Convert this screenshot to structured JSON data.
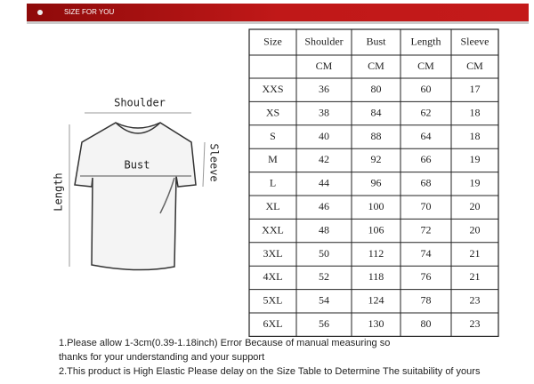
{
  "header": {
    "title": "SIZE FOR YOU"
  },
  "diagram": {
    "shoulder": "Shoulder",
    "bust": "Bust",
    "sleeve": "Sleeve",
    "length": "Length"
  },
  "table": {
    "columns": [
      "Size",
      "Shoulder",
      "Bust",
      "Length",
      "Sleeve"
    ],
    "units": [
      "CM",
      "CM",
      "CM",
      "CM"
    ],
    "rows": [
      [
        "XXS",
        "36",
        "80",
        "60",
        "17"
      ],
      [
        "XS",
        "38",
        "84",
        "62",
        "18"
      ],
      [
        "S",
        "40",
        "88",
        "64",
        "18"
      ],
      [
        "M",
        "42",
        "92",
        "66",
        "19"
      ],
      [
        "L",
        "44",
        "96",
        "68",
        "19"
      ],
      [
        "XL",
        "46",
        "100",
        "70",
        "20"
      ],
      [
        "XXL",
        "48",
        "106",
        "72",
        "20"
      ],
      [
        "3XL",
        "50",
        "112",
        "74",
        "21"
      ],
      [
        "4XL",
        "52",
        "118",
        "76",
        "21"
      ],
      [
        "5XL",
        "54",
        "124",
        "78",
        "23"
      ],
      [
        "6XL",
        "56",
        "130",
        "80",
        "23"
      ]
    ]
  },
  "notes": [
    "1.Please allow 1-3cm(0.39-1.18inch) Error Because of manual measuring so",
    "thanks for your understanding and your support",
    "2.This product is High Elastic   Please delay on the Size Table to Determine The suitability of yours"
  ]
}
